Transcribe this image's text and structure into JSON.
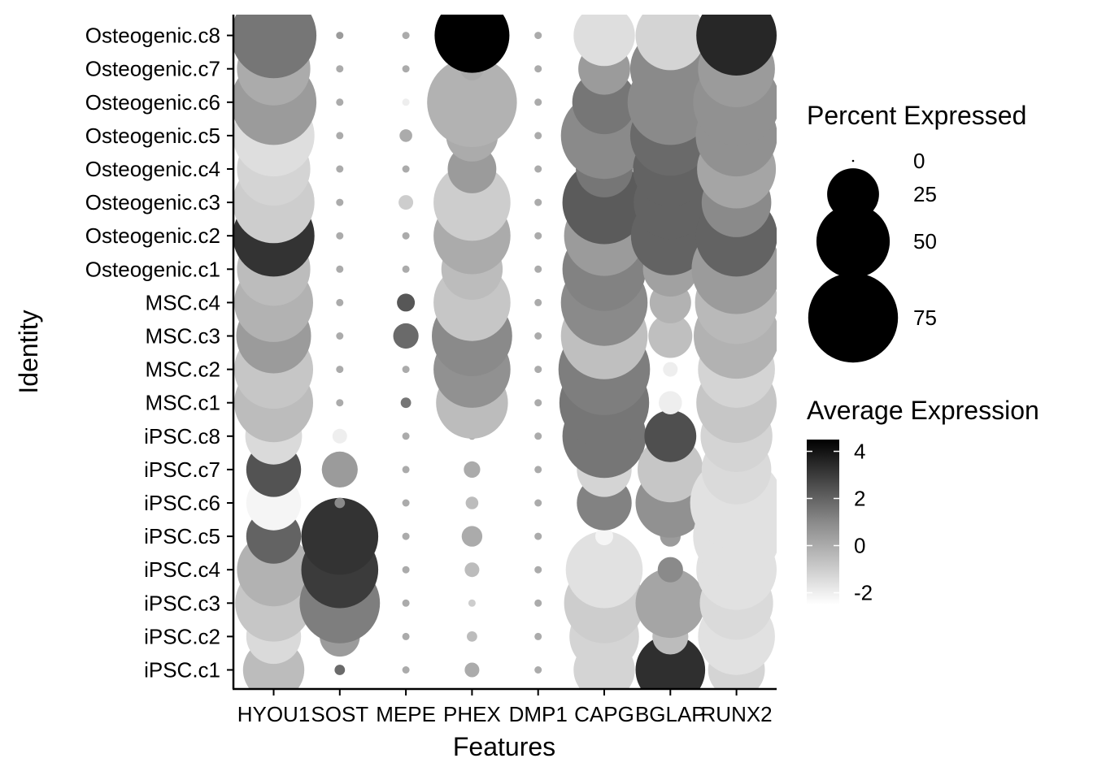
{
  "chart_data": {
    "type": "dotplot",
    "xlabel": "Features",
    "ylabel": "Identity",
    "features": [
      "HYOU1",
      "SOST",
      "MEPE",
      "PHEX",
      "DMP1",
      "CAPG",
      "BGLAP",
      "RUNX2"
    ],
    "identities": [
      "iPSC.c1",
      "iPSC.c2",
      "iPSC.c3",
      "iPSC.c4",
      "iPSC.c5",
      "iPSC.c6",
      "iPSC.c7",
      "iPSC.c8",
      "MSC.c1",
      "MSC.c2",
      "MSC.c3",
      "MSC.c4",
      "Osteogenic.c1",
      "Osteogenic.c2",
      "Osteogenic.c3",
      "Osteogenic.c4",
      "Osteogenic.c5",
      "Osteogenic.c6",
      "Osteogenic.c7",
      "Osteogenic.c8"
    ],
    "pct_expressed": [
      [
        35,
        1,
        0.5,
        2,
        0.5,
        35,
        45,
        30
      ],
      [
        28,
        15,
        0.5,
        1,
        0.5,
        45,
        12,
        55
      ],
      [
        55,
        60,
        0.5,
        0.5,
        0.5,
        60,
        45,
        50
      ],
      [
        50,
        55,
        0.5,
        2,
        0.5,
        55,
        6,
        60
      ],
      [
        28,
        55,
        0.5,
        4,
        0.5,
        3,
        4,
        70
      ],
      [
        28,
        1,
        0.5,
        1.5,
        0.5,
        28,
        45,
        80
      ],
      [
        28,
        12,
        0.5,
        2.5,
        0.5,
        28,
        40,
        45
      ],
      [
        30,
        2,
        0.5,
        0.5,
        0.5,
        65,
        25,
        48
      ],
      [
        58,
        0.5,
        1,
        48,
        0.5,
        75,
        5,
        60
      ],
      [
        58,
        0.5,
        0.5,
        55,
        0.5,
        78,
        2,
        55
      ],
      [
        52,
        0.5,
        6,
        60,
        0.5,
        70,
        18,
        68
      ],
      [
        58,
        0.5,
        3,
        55,
        0.5,
        70,
        16,
        64
      ],
      [
        50,
        0.5,
        0.5,
        35,
        0.5,
        65,
        28,
        75
      ],
      [
        62,
        0.5,
        0.5,
        55,
        0.5,
        60,
        58,
        62
      ],
      [
        62,
        0.5,
        2,
        55,
        0.5,
        65,
        50,
        45
      ],
      [
        50,
        0.5,
        0.5,
        22,
        0.5,
        30,
        52,
        58
      ],
      [
        62,
        0.5,
        1.5,
        25,
        0.5,
        70,
        60,
        62
      ],
      [
        68,
        0.5,
        0.5,
        75,
        0.5,
        38,
        68,
        70
      ],
      [
        50,
        0.5,
        0.5,
        5,
        0.5,
        25,
        60,
        55
      ],
      [
        68,
        0.5,
        0.5,
        52,
        0.5,
        35,
        45,
        60
      ]
    ],
    "avg_expression": [
      [
        -0.5,
        1.8,
        0,
        0,
        0,
        -1.2,
        3.3,
        -1.2
      ],
      [
        -1.4,
        0.5,
        0,
        -0.5,
        0,
        -1.2,
        -0.5,
        -1.6
      ],
      [
        -0.8,
        1.3,
        0,
        -1.0,
        0,
        -1.0,
        0.2,
        -1.4
      ],
      [
        -0.2,
        3.0,
        0,
        -0.5,
        0,
        -1.6,
        1.0,
        -1.6
      ],
      [
        2.0,
        3.2,
        0,
        0,
        0,
        -2.2,
        0.5,
        -1.6
      ],
      [
        -2.2,
        1.0,
        0,
        -0.5,
        0,
        1.2,
        0.8,
        -1.6
      ],
      [
        2.4,
        0.5,
        0,
        0,
        0,
        -1.2,
        -0.8,
        -1.4
      ],
      [
        -1.4,
        -2.0,
        0,
        0,
        0,
        1.5,
        2.5,
        -1.2
      ],
      [
        -0.5,
        0,
        1.5,
        -0.5,
        0,
        1.5,
        -2.0,
        -0.8
      ],
      [
        -0.8,
        0,
        0,
        0.8,
        0,
        1.3,
        -2.0,
        -1.2
      ],
      [
        0.5,
        0,
        1.8,
        1.0,
        0,
        -0.6,
        -0.6,
        -0.2
      ],
      [
        -0.2,
        0,
        2.3,
        -0.8,
        0,
        1.0,
        -0.2,
        -0.4
      ],
      [
        -0.5,
        0,
        0,
        -0.5,
        0,
        1.2,
        0.3,
        0.5
      ],
      [
        3.2,
        0,
        0,
        0,
        0,
        0.5,
        2.0,
        2.0
      ],
      [
        -1.0,
        0,
        -1.0,
        -1.0,
        0,
        2.2,
        2.0,
        1.0
      ],
      [
        -1.2,
        0,
        0,
        0.5,
        0,
        1.5,
        2.0,
        0.2
      ],
      [
        -1.5,
        0,
        0,
        0,
        0,
        1.0,
        1.8,
        0.8
      ],
      [
        0.5,
        0,
        -2.0,
        -0.2,
        0,
        1.5,
        1.0,
        0.8
      ],
      [
        0,
        0,
        0,
        0,
        0,
        0.5,
        1.0,
        0.5
      ],
      [
        1.5,
        0.5,
        0,
        4.5,
        0,
        -1.5,
        -1.2,
        3.5
      ]
    ],
    "size_legend": {
      "title": "Percent Expressed",
      "breaks": [
        0,
        25,
        50,
        75
      ],
      "labels": [
        "0",
        "25",
        "50",
        "75"
      ]
    },
    "color_legend": {
      "title": "Average Expression",
      "breaks": [
        4,
        2,
        0,
        -2
      ],
      "labels": [
        "4",
        "2",
        "0",
        "-2"
      ],
      "range": [
        -2.5,
        4.5
      ],
      "low_color": "#ffffff",
      "high_color": "#000000"
    }
  }
}
